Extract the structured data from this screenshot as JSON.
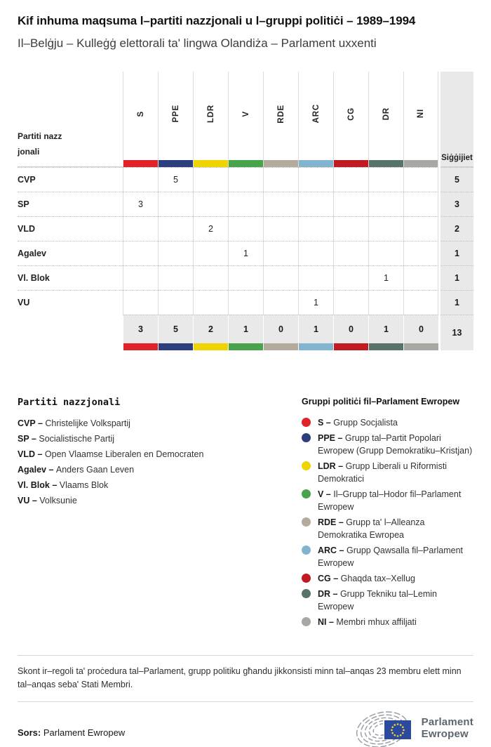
{
  "header": {
    "title": "Kif inhuma maqsuma l–partiti nazzjonali u l–gruppi politiċi – 1989–1994",
    "subtitle": "Il–Belġju – Kulleġġ elettorali ta' lingwa Olandiża – Parlament uxxenti"
  },
  "table": {
    "row_header_label": "Partiti nazzjonali",
    "seats_label": "Siġġijiet",
    "groups": [
      {
        "code": "S",
        "color": "#e02229"
      },
      {
        "code": "PPE",
        "color": "#2b3f7e"
      },
      {
        "code": "LDR",
        "color": "#eed402"
      },
      {
        "code": "V",
        "color": "#47a44b"
      },
      {
        "code": "RDE",
        "color": "#b3ab9b"
      },
      {
        "code": "ARC",
        "color": "#82b4d0"
      },
      {
        "code": "CG",
        "color": "#bf1b21"
      },
      {
        "code": "DR",
        "color": "#587468"
      },
      {
        "code": "NI",
        "color": "#a7a7a4"
      }
    ],
    "rows": [
      {
        "party": "CVP",
        "values": [
          "",
          "5",
          "",
          "",
          "",
          "",
          "",
          "",
          ""
        ],
        "total": "5"
      },
      {
        "party": "SP",
        "values": [
          "3",
          "",
          "",
          "",
          "",
          "",
          "",
          "",
          ""
        ],
        "total": "3"
      },
      {
        "party": "VLD",
        "values": [
          "",
          "",
          "2",
          "",
          "",
          "",
          "",
          "",
          ""
        ],
        "total": "2"
      },
      {
        "party": "Agalev",
        "values": [
          "",
          "",
          "",
          "1",
          "",
          "",
          "",
          "",
          ""
        ],
        "total": "1"
      },
      {
        "party": "Vl. Blok",
        "values": [
          "",
          "",
          "",
          "",
          "",
          "",
          "",
          "1",
          ""
        ],
        "total": "1"
      },
      {
        "party": "VU",
        "values": [
          "",
          "",
          "",
          "",
          "",
          "1",
          "",
          "",
          ""
        ],
        "total": "1"
      }
    ],
    "totals": {
      "values": [
        "3",
        "5",
        "2",
        "1",
        "0",
        "1",
        "0",
        "1",
        "0"
      ],
      "total": "13"
    }
  },
  "chart_data": {
    "type": "table",
    "title": "Kif inhuma maqsuma l–partiti nazzjonali u l–gruppi politiċi – 1989–1994",
    "subtitle": "Il–Belġju – Kulleġġ elettorali ta' lingwa Olandiża – Parlament uxxenti",
    "columns": [
      "S",
      "PPE",
      "LDR",
      "V",
      "RDE",
      "ARC",
      "CG",
      "DR",
      "NI",
      "Siġġijiet"
    ],
    "rows": [
      {
        "label": "CVP",
        "values": [
          0,
          5,
          0,
          0,
          0,
          0,
          0,
          0,
          0
        ],
        "total": 5
      },
      {
        "label": "SP",
        "values": [
          3,
          0,
          0,
          0,
          0,
          0,
          0,
          0,
          0
        ],
        "total": 3
      },
      {
        "label": "VLD",
        "values": [
          0,
          0,
          2,
          0,
          0,
          0,
          0,
          0,
          0
        ],
        "total": 2
      },
      {
        "label": "Agalev",
        "values": [
          0,
          0,
          0,
          1,
          0,
          0,
          0,
          0,
          0
        ],
        "total": 1
      },
      {
        "label": "Vl. Blok",
        "values": [
          0,
          0,
          0,
          0,
          0,
          0,
          0,
          1,
          0
        ],
        "total": 1
      },
      {
        "label": "VU",
        "values": [
          0,
          0,
          0,
          0,
          0,
          1,
          0,
          0,
          0
        ],
        "total": 1
      }
    ],
    "column_totals": [
      3,
      5,
      2,
      1,
      0,
      1,
      0,
      1,
      0
    ],
    "grand_total": 13,
    "group_colors": {
      "S": "#e02229",
      "PPE": "#2b3f7e",
      "LDR": "#eed402",
      "V": "#47a44b",
      "RDE": "#b3ab9b",
      "ARC": "#82b4d0",
      "CG": "#bf1b21",
      "DR": "#587468",
      "NI": "#a7a7a4"
    }
  },
  "legend_parties": {
    "heading": "Partiti nazzjonali",
    "items": [
      {
        "abbr": "CVP –",
        "name": "Christelijke Volkspartij"
      },
      {
        "abbr": "SP –",
        "name": "Socialistische Partij"
      },
      {
        "abbr": "VLD –",
        "name": "Open Vlaamse Liberalen en Democraten"
      },
      {
        "abbr": "Agalev –",
        "name": "Anders Gaan Leven"
      },
      {
        "abbr": "Vl. Blok –",
        "name": "Vlaams Blok"
      },
      {
        "abbr": "VU –",
        "name": "Volksunie"
      }
    ]
  },
  "legend_groups": {
    "heading": "Gruppi politiċi fil–Parlament Ewropew",
    "items": [
      {
        "abbr": "S –",
        "name": "Grupp Socjalista",
        "color": "#e02229"
      },
      {
        "abbr": "PPE –",
        "name": "Grupp tal–Partit Popolari Ewropew (Grupp Demokratiku–Kristjan)",
        "color": "#2b3f7e"
      },
      {
        "abbr": "LDR –",
        "name": "Grupp Liberali u Riformisti Demokratici",
        "color": "#eed402"
      },
      {
        "abbr": "V –",
        "name": "Il–Grupp tal–Hodor fil–Parlament Ewropew",
        "color": "#47a44b"
      },
      {
        "abbr": "RDE –",
        "name": "Grupp ta' l–Alleanza Demokratika Ewropea",
        "color": "#b3ab9b"
      },
      {
        "abbr": "ARC –",
        "name": "Grupp Qawsalla fil–Parlament Ewropew",
        "color": "#82b4d0"
      },
      {
        "abbr": "CG –",
        "name": "Ghaqda tax–Xellug",
        "color": "#bf1b21"
      },
      {
        "abbr": "DR –",
        "name": "Grupp Tekniku tal–Lemin Ewropew",
        "color": "#587468"
      },
      {
        "abbr": "NI –",
        "name": "Membri mhux affiljati",
        "color": "#a7a7a4"
      }
    ]
  },
  "footer": {
    "note": "Skont ir–regoli ta' proċedura tal–Parlament, grupp politiku għandu jikkonsisti minn tal–anqas 23 membru elett minn tal–anqas seba' Stati Membri.",
    "source_label": "Sors:",
    "source_value": "Parlament Ewropew",
    "logo_text_line1": "Parlament",
    "logo_text_line2": "Ewropew"
  }
}
